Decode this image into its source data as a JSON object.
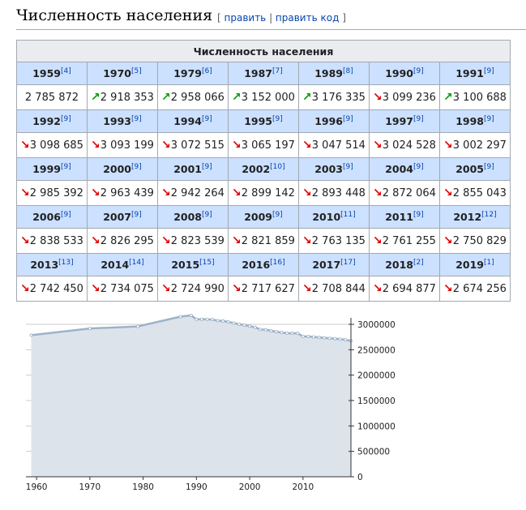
{
  "section": {
    "title": "Численность населения",
    "edit_open": "[ ",
    "edit_link": "править",
    "edit_sep": " | ",
    "edit_code_link": "править код",
    "edit_close": " ]"
  },
  "table": {
    "caption": "Численность населения",
    "rows": [
      [
        {
          "year": "1959",
          "ref": "[4]",
          "trend": "",
          "value": "2 785 872"
        },
        {
          "year": "1970",
          "ref": "[5]",
          "trend": "up",
          "value": "2 918 353"
        },
        {
          "year": "1979",
          "ref": "[6]",
          "trend": "up",
          "value": "2 958 066"
        },
        {
          "year": "1987",
          "ref": "[7]",
          "trend": "up",
          "value": "3 152 000"
        },
        {
          "year": "1989",
          "ref": "[8]",
          "trend": "up",
          "value": "3 176 335"
        },
        {
          "year": "1990",
          "ref": "[9]",
          "trend": "down",
          "value": "3 099 236"
        },
        {
          "year": "1991",
          "ref": "[9]",
          "trend": "up",
          "value": "3 100 688"
        }
      ],
      [
        {
          "year": "1992",
          "ref": "[9]",
          "trend": "down",
          "value": "3 098 685"
        },
        {
          "year": "1993",
          "ref": "[9]",
          "trend": "down",
          "value": "3 093 199"
        },
        {
          "year": "1994",
          "ref": "[9]",
          "trend": "down",
          "value": "3 072 515"
        },
        {
          "year": "1995",
          "ref": "[9]",
          "trend": "down",
          "value": "3 065 197"
        },
        {
          "year": "1996",
          "ref": "[9]",
          "trend": "down",
          "value": "3 047 514"
        },
        {
          "year": "1997",
          "ref": "[9]",
          "trend": "down",
          "value": "3 024 528"
        },
        {
          "year": "1998",
          "ref": "[9]",
          "trend": "down",
          "value": "3 002 297"
        }
      ],
      [
        {
          "year": "1999",
          "ref": "[9]",
          "trend": "down",
          "value": "2 985 392"
        },
        {
          "year": "2000",
          "ref": "[9]",
          "trend": "down",
          "value": "2 963 439"
        },
        {
          "year": "2001",
          "ref": "[9]",
          "trend": "down",
          "value": "2 942 264"
        },
        {
          "year": "2002",
          "ref": "[10]",
          "trend": "down",
          "value": "2 899 142"
        },
        {
          "year": "2003",
          "ref": "[9]",
          "trend": "down",
          "value": "2 893 448"
        },
        {
          "year": "2004",
          "ref": "[9]",
          "trend": "down",
          "value": "2 872 064"
        },
        {
          "year": "2005",
          "ref": "[9]",
          "trend": "down",
          "value": "2 855 043"
        }
      ],
      [
        {
          "year": "2006",
          "ref": "[9]",
          "trend": "down",
          "value": "2 838 533"
        },
        {
          "year": "2007",
          "ref": "[9]",
          "trend": "down",
          "value": "2 826 295"
        },
        {
          "year": "2008",
          "ref": "[9]",
          "trend": "down",
          "value": "2 823 539"
        },
        {
          "year": "2009",
          "ref": "[9]",
          "trend": "down",
          "value": "2 821 859"
        },
        {
          "year": "2010",
          "ref": "[11]",
          "trend": "down",
          "value": "2 763 135"
        },
        {
          "year": "2011",
          "ref": "[9]",
          "trend": "down",
          "value": "2 761 255"
        },
        {
          "year": "2012",
          "ref": "[12]",
          "trend": "down",
          "value": "2 750 829"
        }
      ],
      [
        {
          "year": "2013",
          "ref": "[13]",
          "trend": "down",
          "value": "2 742 450"
        },
        {
          "year": "2014",
          "ref": "[14]",
          "trend": "down",
          "value": "2 734 075"
        },
        {
          "year": "2015",
          "ref": "[15]",
          "trend": "down",
          "value": "2 724 990"
        },
        {
          "year": "2016",
          "ref": "[16]",
          "trend": "down",
          "value": "2 717 627"
        },
        {
          "year": "2017",
          "ref": "[17]",
          "trend": "down",
          "value": "2 708 844"
        },
        {
          "year": "2018",
          "ref": "[2]",
          "trend": "down",
          "value": "2 694 877"
        },
        {
          "year": "2019",
          "ref": "[1]",
          "trend": "down",
          "value": "2 674 256"
        }
      ]
    ]
  },
  "chart_data": {
    "type": "area",
    "title": "",
    "xlabel": "",
    "ylabel": "",
    "x": [
      1959,
      1970,
      1979,
      1987,
      1989,
      1990,
      1991,
      1992,
      1993,
      1994,
      1995,
      1996,
      1997,
      1998,
      1999,
      2000,
      2001,
      2002,
      2003,
      2004,
      2005,
      2006,
      2007,
      2008,
      2009,
      2010,
      2011,
      2012,
      2013,
      2014,
      2015,
      2016,
      2017,
      2018,
      2019
    ],
    "values": [
      2785872,
      2918353,
      2958066,
      3152000,
      3176335,
      3099236,
      3100688,
      3098685,
      3093199,
      3072515,
      3065197,
      3047514,
      3024528,
      3002297,
      2985392,
      2963439,
      2942264,
      2899142,
      2893448,
      2872064,
      2855043,
      2838533,
      2826295,
      2823539,
      2821859,
      2763135,
      2761255,
      2750829,
      2742450,
      2734075,
      2724990,
      2717627,
      2708844,
      2694877,
      2674256
    ],
    "xlim": [
      1958,
      2019
    ],
    "ylim": [
      0,
      3000000
    ],
    "x_ticks": [
      "1960",
      "1970",
      "1980",
      "1990",
      "2000",
      "2010"
    ],
    "y_ticks": [
      "3000000",
      "2500000",
      "2000000",
      "1500000",
      "1000000",
      "500000",
      "0"
    ],
    "y_axis_side": "right",
    "grid": true,
    "colors": {
      "line": "#9db3c9",
      "fill": "#dde3eb",
      "marker": "#ffffff",
      "grid": "#cccccc",
      "axis": "#333333"
    }
  }
}
